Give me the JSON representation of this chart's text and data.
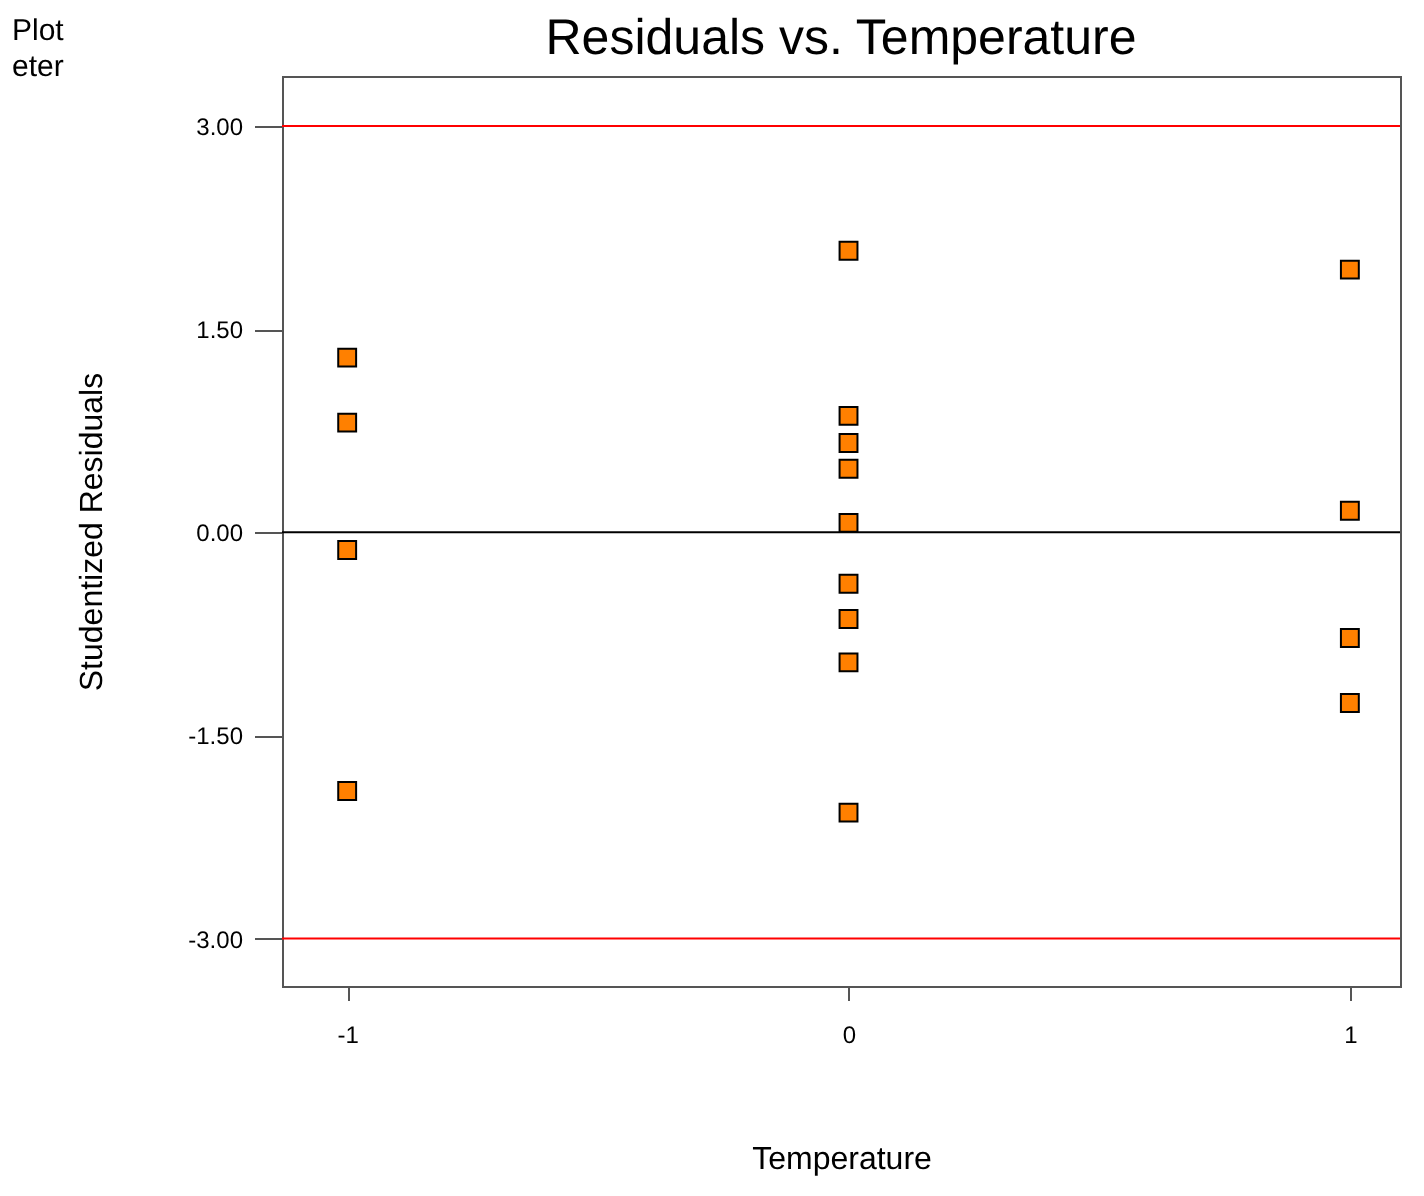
{
  "chart_data": {
    "type": "scatter",
    "title": "Residuals vs. Temperature",
    "xlabel": "Temperature",
    "ylabel": "Studentized Residuals",
    "annotations": [
      "Plot",
      "eter"
    ],
    "series": [
      {
        "color": "#ff8000",
        "x": [
          -1,
          -1,
          -1,
          -1,
          0,
          0,
          0,
          0,
          0,
          0,
          0,
          0,
          0,
          1,
          1,
          1,
          1
        ],
        "values": [
          1.29,
          0.81,
          -0.13,
          -1.91,
          2.08,
          0.86,
          0.66,
          0.47,
          0.07,
          -0.38,
          -0.64,
          -0.96,
          -2.07,
          1.94,
          0.16,
          -0.78,
          -1.26
        ]
      }
    ],
    "marker": "square",
    "xlim": [
      -1.13,
      1.1
    ],
    "xticks": [
      -1,
      0,
      1
    ],
    "ylim": [
      -3.35,
      3.37
    ],
    "yticks": [
      {
        "value": -3,
        "label": "-3.00"
      },
      {
        "value": -1.5,
        "label": "-1.50"
      },
      {
        "value": 0,
        "label": "0.00"
      },
      {
        "value": 1.5,
        "label": "1.50"
      },
      {
        "value": 3,
        "label": "3.00"
      }
    ],
    "ref_lines": [
      {
        "axis": "y",
        "value": 3,
        "color": "#ff0000"
      },
      {
        "axis": "y",
        "value": -3,
        "color": "#ff0000"
      },
      {
        "axis": "y",
        "value": 0,
        "color": "#000000"
      }
    ],
    "grid": false
  }
}
